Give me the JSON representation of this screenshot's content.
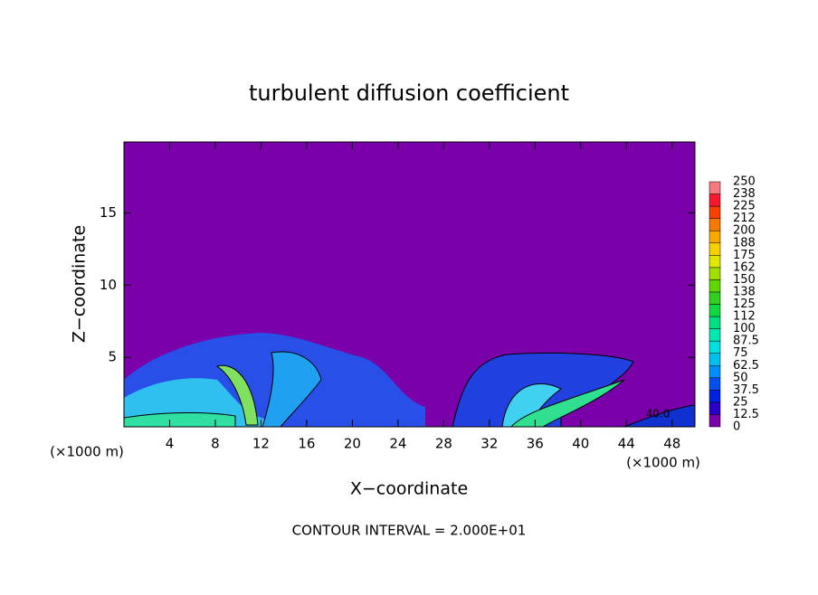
{
  "chart_data": {
    "type": "contour",
    "title": "turbulent diffusion coefficient",
    "x_label": "X−coordinate",
    "y_label": "Z−coordinate",
    "x_unit": "(×1000 m)",
    "y_unit": "(×1000 m)",
    "footer": "CONTOUR INTERVAL = 2.000E+01",
    "annotations": [
      "40.0"
    ],
    "xlim": [
      0,
      50
    ],
    "xticks": [
      4,
      8,
      12,
      16,
      20,
      24,
      28,
      32,
      36,
      40,
      44,
      48
    ],
    "ylim": [
      0.2,
      19.9
    ],
    "yticks": [
      5,
      10,
      15
    ],
    "background_color": "#7a00aa",
    "colorbar": {
      "ticks": [
        0,
        12.5,
        25,
        37.5,
        50,
        62.5,
        75,
        87.5,
        100,
        112,
        125,
        138,
        150,
        162,
        175,
        188,
        200,
        212,
        225,
        238,
        250
      ],
      "colors": [
        "#7a00aa",
        "#2a00c8",
        "#0020e0",
        "#0050f0",
        "#0090f8",
        "#00c0f0",
        "#00e0e0",
        "#00e8b0",
        "#00e080",
        "#10d840",
        "#30d020",
        "#60d800",
        "#a0e000",
        "#e0e800",
        "#f8d000",
        "#f8a800",
        "#f87800",
        "#f84000",
        "#f81830",
        "#f87880"
      ]
    }
  }
}
